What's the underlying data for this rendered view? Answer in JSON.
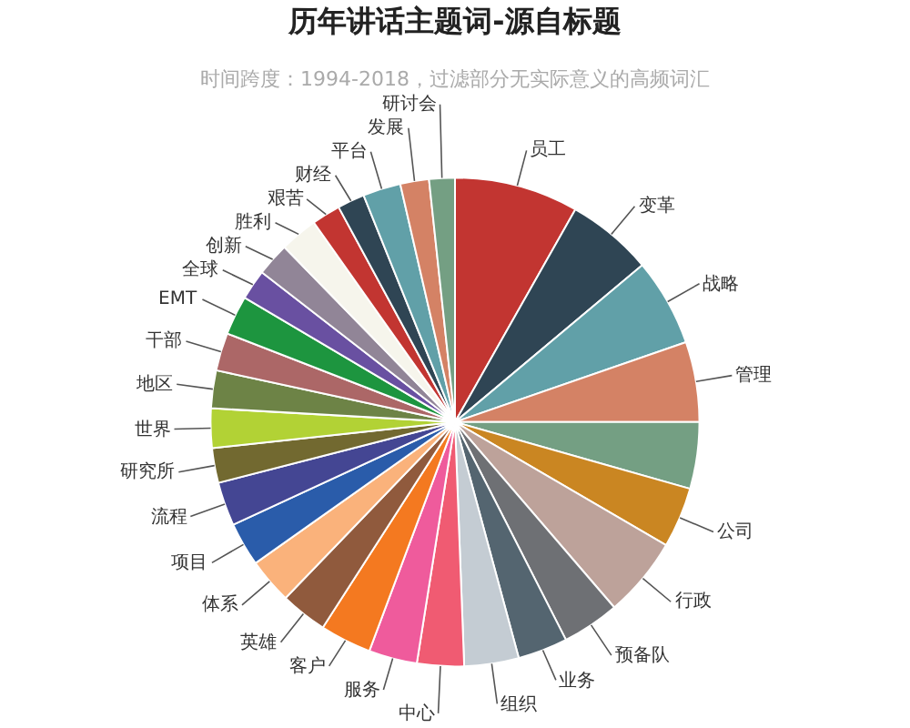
{
  "chart_data": {
    "type": "pie",
    "title": "历年讲话主题词-源自标题",
    "subtitle": "时间跨度：1994-2018，过滤部分无实际意义的高频词汇",
    "categories": [
      "员工",
      "变革",
      "战略",
      "管理",
      null,
      "公司",
      "行政",
      "预备队",
      "业务",
      "组织",
      "中心",
      "服务",
      "客户",
      "英雄",
      "体系",
      "项目",
      "流程",
      "研究所",
      "世界",
      "地区",
      "干部",
      "EMT",
      "全球",
      "创新",
      "胜利",
      "艰苦",
      "财经",
      "平台",
      "发展",
      "研讨会"
    ],
    "values": [
      8.2,
      5.7,
      5.8,
      5.3,
      4.4,
      4.0,
      5.3,
      3.8,
      3.3,
      3.6,
      3.1,
      3.2,
      3.4,
      3.1,
      3.0,
      2.9,
      2.9,
      2.3,
      2.6,
      2.5,
      2.5,
      2.6,
      2.0,
      2.2,
      2.5,
      1.9,
      1.8,
      2.5,
      1.9,
      1.7
    ],
    "colors": [
      "#c23531",
      "#2f4554",
      "#61a0a8",
      "#d48265",
      "#749f83",
      "#ca8622",
      "#bda29a",
      "#6e7074",
      "#546570",
      "#c4ccd3",
      "#f05b72",
      "#ef5b9c",
      "#f47920",
      "#905a3d",
      "#fab27b",
      "#2a5caa",
      "#444693",
      "#726930",
      "#b2d235",
      "#6d8346",
      "#ac6767",
      "#1d953f",
      "#6950a1",
      "#918597",
      "#f6f5ec",
      "#c23531",
      "#2f4554",
      "#61a0a8",
      "#d48265",
      "#749f83"
    ]
  }
}
